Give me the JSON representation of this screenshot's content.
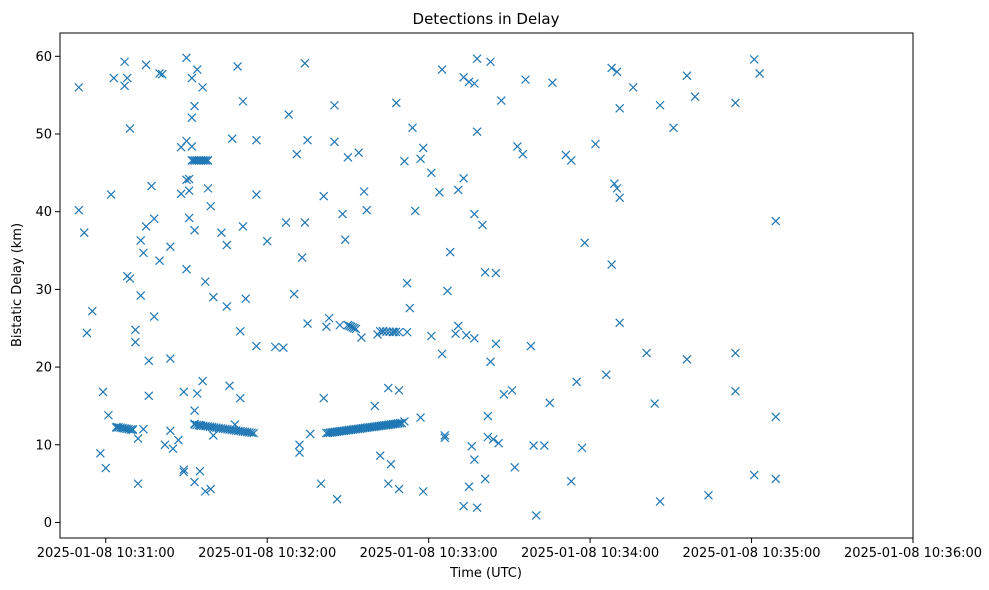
{
  "chart_data": {
    "type": "scatter",
    "title": "Detections in Delay",
    "xlabel": "Time (UTC)",
    "ylabel": "Bistatic Delay (km)",
    "marker": "x",
    "color": "#1f77b4",
    "grid": false,
    "legend": "none",
    "xlim": [
      "2025-01-08 10:30:43",
      "2025-01-08 10:36:00"
    ],
    "ylim": [
      -2,
      63
    ],
    "x_ticks": [
      "2025-01-08 10:31:00",
      "2025-01-08 10:32:00",
      "2025-01-08 10:33:00",
      "2025-01-08 10:34:00",
      "2025-01-08 10:35:00",
      "2025-01-08 10:36:00"
    ],
    "y_ticks": [
      0,
      10,
      20,
      30,
      40,
      50,
      60
    ],
    "points": [
      [
        "10:30:50",
        56
      ],
      [
        "10:30:50",
        40.2
      ],
      [
        "10:30:52",
        37.3
      ],
      [
        "10:30:53",
        24.4
      ],
      [
        "10:30:55",
        27.2
      ],
      [
        "10:30:58",
        8.9
      ],
      [
        "10:30:59",
        16.8
      ],
      [
        "10:31:00",
        7
      ],
      [
        "10:31:01",
        13.8
      ],
      [
        "10:31:02",
        42.2
      ],
      [
        "10:31:03",
        57.2
      ],
      [
        "10:31:04",
        12.2
      ],
      [
        "10:31:07",
        59.3
      ],
      [
        "10:31:07",
        56.2
      ],
      [
        "10:31:08",
        31.7
      ],
      [
        "10:31:08",
        57.2
      ],
      [
        "10:31:09",
        31.4
      ],
      [
        "10:31:09",
        50.7
      ],
      [
        "10:31:10",
        12
      ],
      [
        "10:31:11",
        24.8
      ],
      [
        "10:31:11",
        23.2
      ],
      [
        "10:31:12",
        10.8
      ],
      [
        "10:31:12",
        5
      ],
      [
        "10:31:13",
        29.2
      ],
      [
        "10:31:13",
        36.3
      ],
      [
        "10:31:14",
        12
      ],
      [
        "10:31:14",
        34.7
      ],
      [
        "10:31:15",
        38.1
      ],
      [
        "10:31:15",
        58.9
      ],
      [
        "10:31:16",
        16.3
      ],
      [
        "10:31:16",
        20.8
      ],
      [
        "10:31:17",
        43.3
      ],
      [
        "10:31:18",
        26.5
      ],
      [
        "10:31:18",
        39.1
      ],
      [
        "10:31:20",
        57.8
      ],
      [
        "10:31:20",
        33.7
      ],
      [
        "10:31:21",
        57.7
      ],
      [
        "10:31:22",
        10
      ],
      [
        "10:31:24",
        11.8
      ],
      [
        "10:31:24",
        21.1
      ],
      [
        "10:31:24",
        35.5
      ],
      [
        "10:31:25",
        9.5
      ],
      [
        "10:31:27",
        10.6
      ],
      [
        "10:31:28",
        42.3
      ],
      [
        "10:31:28",
        48.3
      ],
      [
        "10:31:29",
        6.8
      ],
      [
        "10:31:29",
        6.5
      ],
      [
        "10:31:29",
        16.8
      ],
      [
        "10:31:30",
        59.8
      ],
      [
        "10:31:30",
        44.1
      ],
      [
        "10:31:30",
        49.1
      ],
      [
        "10:31:30",
        32.6
      ],
      [
        "10:31:31",
        39.2
      ],
      [
        "10:31:31",
        42.7
      ],
      [
        "10:31:31",
        44.2
      ],
      [
        "10:31:32",
        48.4
      ],
      [
        "10:31:32",
        52.1
      ],
      [
        "10:31:32",
        57.2
      ],
      [
        "10:31:33",
        53.6
      ],
      [
        "10:31:33",
        14.4
      ],
      [
        "10:31:33",
        5.2
      ],
      [
        "10:31:33",
        37.6
      ],
      [
        "10:31:33",
        12.7
      ],
      [
        "10:31:34",
        58.3
      ],
      [
        "10:31:34",
        16.6
      ],
      [
        "10:31:35",
        6.6
      ],
      [
        "10:31:35",
        12.5
      ],
      [
        "10:31:36",
        56
      ],
      [
        "10:31:36",
        18.2
      ],
      [
        "10:31:37",
        31
      ],
      [
        "10:31:37",
        4
      ],
      [
        "10:31:38",
        43
      ],
      [
        "10:31:39",
        4.3
      ],
      [
        "10:31:39",
        40.7
      ],
      [
        "10:31:40",
        29
      ],
      [
        "10:31:40",
        11.2
      ],
      [
        "10:31:43",
        37.3
      ],
      [
        "10:31:45",
        35.7
      ],
      [
        "10:31:45",
        27.8
      ],
      [
        "10:31:46",
        17.6
      ],
      [
        "10:31:47",
        49.4
      ],
      [
        "10:31:48",
        12.6
      ],
      [
        "10:31:49",
        58.7
      ],
      [
        "10:31:50",
        24.6
      ],
      [
        "10:31:50",
        16
      ],
      [
        "10:31:51",
        38.1
      ],
      [
        "10:31:51",
        54.2
      ],
      [
        "10:31:52",
        28.8
      ],
      [
        "10:31:56",
        49.2
      ],
      [
        "10:31:56",
        42.2
      ],
      [
        "10:31:56",
        22.7
      ],
      [
        "10:32:00",
        36.2
      ],
      [
        "10:32:03",
        22.6
      ],
      [
        "10:32:06",
        22.5
      ],
      [
        "10:32:07",
        38.6
      ],
      [
        "10:32:08",
        52.5
      ],
      [
        "10:32:10",
        29.4
      ],
      [
        "10:32:11",
        47.4
      ],
      [
        "10:32:12",
        9
      ],
      [
        "10:32:12",
        10
      ],
      [
        "10:32:13",
        34.1
      ],
      [
        "10:32:14",
        38.6
      ],
      [
        "10:32:14",
        59.1
      ],
      [
        "10:32:15",
        49.2
      ],
      [
        "10:32:15",
        25.6
      ],
      [
        "10:32:16",
        11.4
      ],
      [
        "10:32:20",
        5
      ],
      [
        "10:32:21",
        16
      ],
      [
        "10:32:21",
        42
      ],
      [
        "10:32:22",
        25.2
      ],
      [
        "10:32:23",
        26.3
      ],
      [
        "10:32:25",
        53.7
      ],
      [
        "10:32:25",
        49
      ],
      [
        "10:32:26",
        3
      ],
      [
        "10:32:27",
        25.4
      ],
      [
        "10:32:28",
        39.7
      ],
      [
        "10:32:29",
        36.4
      ],
      [
        "10:32:30",
        47
      ],
      [
        "10:32:30",
        25.4
      ],
      [
        "10:32:34",
        47.6
      ],
      [
        "10:32:35",
        23.8
      ],
      [
        "10:32:36",
        42.6
      ],
      [
        "10:32:37",
        40.2
      ],
      [
        "10:32:40",
        15
      ],
      [
        "10:32:41",
        24.2
      ],
      [
        "10:32:42",
        8.6
      ],
      [
        "10:32:43",
        24.6
      ],
      [
        "10:32:45",
        17.3
      ],
      [
        "10:32:45",
        5
      ],
      [
        "10:32:46",
        7.5
      ],
      [
        "10:32:47",
        24.5
      ],
      [
        "10:32:48",
        54
      ],
      [
        "10:32:49",
        17
      ],
      [
        "10:32:49",
        4.3
      ],
      [
        "10:32:51",
        46.5
      ],
      [
        "10:32:51",
        13
      ],
      [
        "10:32:52",
        24.5
      ],
      [
        "10:32:52",
        30.8
      ],
      [
        "10:32:53",
        27.6
      ],
      [
        "10:32:54",
        50.8
      ],
      [
        "10:32:55",
        40.1
      ],
      [
        "10:32:57",
        46.8
      ],
      [
        "10:32:57",
        13.5
      ],
      [
        "10:32:58",
        48.2
      ],
      [
        "10:32:58",
        4
      ],
      [
        "10:33:01",
        45
      ],
      [
        "10:33:01",
        24
      ],
      [
        "10:33:04",
        42.5
      ],
      [
        "10:33:05",
        58.3
      ],
      [
        "10:33:05",
        21.7
      ],
      [
        "10:33:06",
        11.2
      ],
      [
        "10:33:06",
        10.9
      ],
      [
        "10:33:07",
        29.8
      ],
      [
        "10:33:08",
        34.8
      ],
      [
        "10:33:10",
        24.3
      ],
      [
        "10:33:11",
        42.8
      ],
      [
        "10:33:11",
        25.3
      ],
      [
        "10:33:13",
        2.1
      ],
      [
        "10:33:13",
        57.3
      ],
      [
        "10:33:13",
        44.3
      ],
      [
        "10:33:14",
        24.1
      ],
      [
        "10:33:15",
        4.6
      ],
      [
        "10:33:15",
        56.7
      ],
      [
        "10:33:16",
        9.8
      ],
      [
        "10:33:17",
        56.5
      ],
      [
        "10:33:17",
        39.7
      ],
      [
        "10:33:17",
        23.7
      ],
      [
        "10:33:17",
        8.1
      ],
      [
        "10:33:18",
        59.7
      ],
      [
        "10:33:18",
        50.3
      ],
      [
        "10:33:18",
        1.9
      ],
      [
        "10:33:20",
        38.3
      ],
      [
        "10:33:21",
        32.2
      ],
      [
        "10:33:21",
        5.6
      ],
      [
        "10:33:22",
        13.7
      ],
      [
        "10:33:22",
        11
      ],
      [
        "10:33:23",
        20.7
      ],
      [
        "10:33:23",
        59.3
      ],
      [
        "10:33:24",
        10.7
      ],
      [
        "10:33:25",
        23
      ],
      [
        "10:33:25",
        32.1
      ],
      [
        "10:33:26",
        10.2
      ],
      [
        "10:33:27",
        54.3
      ],
      [
        "10:33:28",
        16.5
      ],
      [
        "10:33:31",
        17
      ],
      [
        "10:33:32",
        7.1
      ],
      [
        "10:33:33",
        48.4
      ],
      [
        "10:33:35",
        47.4
      ],
      [
        "10:33:36",
        57
      ],
      [
        "10:33:38",
        22.7
      ],
      [
        "10:33:39",
        9.9
      ],
      [
        "10:33:40",
        0.9
      ],
      [
        "10:33:43",
        9.9
      ],
      [
        "10:33:45",
        15.4
      ],
      [
        "10:33:46",
        56.6
      ],
      [
        "10:33:51",
        47.3
      ],
      [
        "10:33:53",
        46.6
      ],
      [
        "10:33:53",
        5.3
      ],
      [
        "10:33:55",
        18.1
      ],
      [
        "10:33:57",
        9.6
      ],
      [
        "10:33:58",
        36
      ],
      [
        "10:34:02",
        48.7
      ],
      [
        "10:34:06",
        19
      ],
      [
        "10:34:08",
        33.2
      ],
      [
        "10:34:08",
        58.5
      ],
      [
        "10:34:09",
        43.6
      ],
      [
        "10:34:10",
        58
      ],
      [
        "10:34:10",
        43
      ],
      [
        "10:34:11",
        53.3
      ],
      [
        "10:34:11",
        41.8
      ],
      [
        "10:34:11",
        25.7
      ],
      [
        "10:34:16",
        56
      ],
      [
        "10:34:21",
        21.8
      ],
      [
        "10:34:24",
        15.3
      ],
      [
        "10:34:26",
        53.7
      ],
      [
        "10:34:26",
        2.7
      ],
      [
        "10:34:31",
        50.8
      ],
      [
        "10:34:36",
        57.5
      ],
      [
        "10:34:36",
        21
      ],
      [
        "10:34:39",
        54.8
      ],
      [
        "10:34:44",
        3.5
      ],
      [
        "10:34:54",
        54
      ],
      [
        "10:34:54",
        21.8
      ],
      [
        "10:34:54",
        16.9
      ],
      [
        "10:35:01",
        59.6
      ],
      [
        "10:35:01",
        6.1
      ],
      [
        "10:35:03",
        57.8
      ],
      [
        "10:35:09",
        38.8
      ],
      [
        "10:35:09",
        13.6
      ],
      [
        "10:35:09",
        5.6
      ]
    ],
    "tracks": [
      {
        "from": "10:31:04",
        "to": "10:31:10",
        "y_from": 12.3,
        "y_to": 11.9,
        "count": 9
      },
      {
        "from": "10:31:32",
        "to": "10:31:38",
        "y_from": 46.6,
        "y_to": 46.6,
        "count": 10
      },
      {
        "from": "10:31:33",
        "to": "10:31:55",
        "y_from": 12.6,
        "y_to": 11.5,
        "count": 28
      },
      {
        "from": "10:32:22",
        "to": "10:32:50",
        "y_from": 11.5,
        "y_to": 12.8,
        "count": 44
      },
      {
        "from": "10:32:30",
        "to": "10:32:33",
        "y_from": 25.4,
        "y_to": 24.9,
        "count": 6
      },
      {
        "from": "10:32:42",
        "to": "10:32:49",
        "y_from": 24.6,
        "y_to": 24.5,
        "count": 7
      }
    ]
  }
}
